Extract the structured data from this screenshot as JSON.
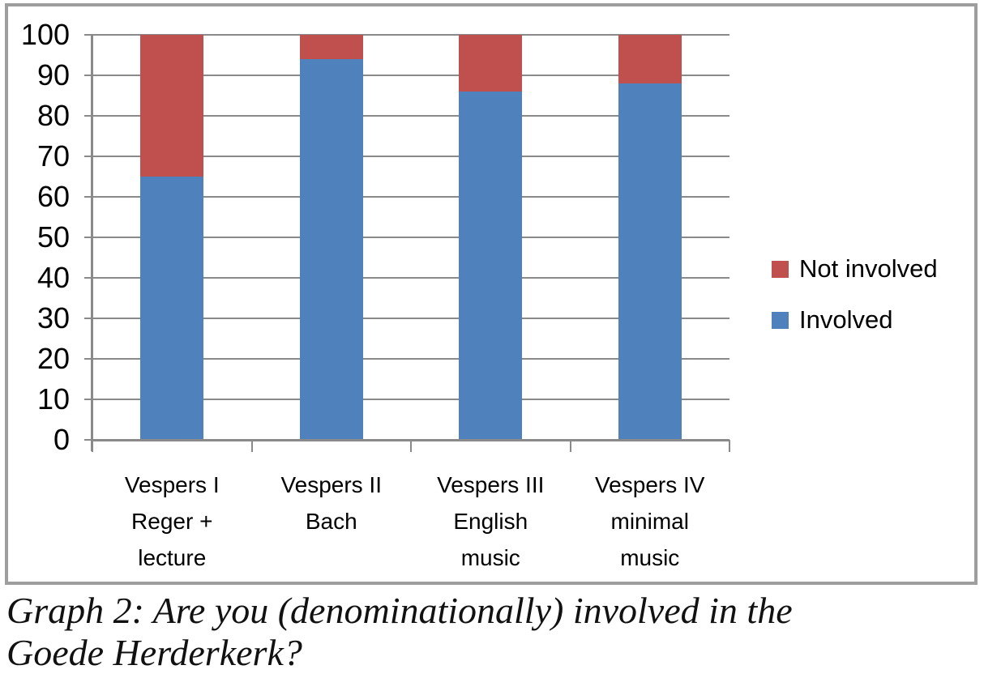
{
  "chart_data": {
    "type": "bar",
    "stacked": true,
    "categories": [
      [
        "Vespers I",
        "Reger +",
        "lecture"
      ],
      [
        "Vespers II",
        "Bach"
      ],
      [
        "Vespers III",
        "English",
        "music"
      ],
      [
        "Vespers IV",
        "minimal",
        "music"
      ]
    ],
    "series": [
      {
        "name": "Involved",
        "color": "#4F81BD",
        "values": [
          65,
          94,
          86,
          88
        ]
      },
      {
        "name": "Not involved",
        "color": "#C0504D",
        "values": [
          35,
          6,
          14,
          12
        ]
      }
    ],
    "ylim": [
      0,
      100
    ],
    "yticks": [
      0,
      10,
      20,
      30,
      40,
      50,
      60,
      70,
      80,
      90,
      100
    ],
    "grid": true,
    "legend_position": "right",
    "legend_order": [
      "Not involved",
      "Involved"
    ]
  },
  "caption": {
    "line1": "Graph 2: Are you (denominationally) involved in the",
    "line2": "Goede Herderkerk?"
  },
  "colors": {
    "grid": "#8a8a8a",
    "frame_border": "#9e9e9e",
    "text": "#000000"
  }
}
